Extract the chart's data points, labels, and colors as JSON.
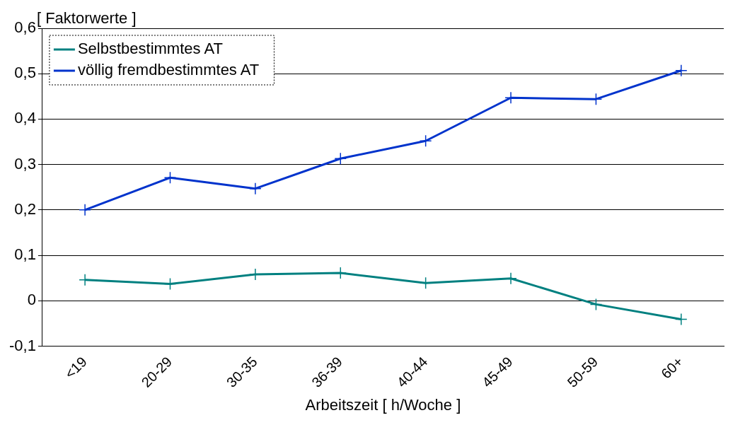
{
  "chart_data": {
    "type": "line",
    "ylabel": "[ Faktorwerte ]",
    "xlabel": "Arbeitszeit [ h/Woche ]",
    "categories": [
      "<19",
      "20-29",
      "30-35",
      "36-39",
      "40-44",
      "45-49",
      "50-59",
      "60+"
    ],
    "series": [
      {
        "name": "Selbstbestimmtes AT",
        "color": "#008080",
        "values": [
          0.046,
          0.037,
          0.058,
          0.061,
          0.039,
          0.049,
          -0.008,
          -0.041
        ]
      },
      {
        "name": "völlig fremdbestimmtes AT",
        "color": "#0033cc",
        "values": [
          0.2,
          0.271,
          0.247,
          0.313,
          0.352,
          0.447,
          0.444,
          0.507
        ]
      }
    ],
    "ylim": [
      -0.1,
      0.6
    ],
    "yticks": [
      {
        "value": -0.1,
        "label": "-0,1"
      },
      {
        "value": 0,
        "label": "0"
      },
      {
        "value": 0.1,
        "label": "0,1"
      },
      {
        "value": 0.2,
        "label": "0,2"
      },
      {
        "value": 0.3,
        "label": "0,3"
      },
      {
        "value": 0.4,
        "label": "0,4"
      },
      {
        "value": 0.5,
        "label": "0,5"
      },
      {
        "value": 0.6,
        "label": "0,6"
      }
    ],
    "grid": "y",
    "legend": "top left",
    "marker": "cross",
    "line_style": "solid"
  }
}
